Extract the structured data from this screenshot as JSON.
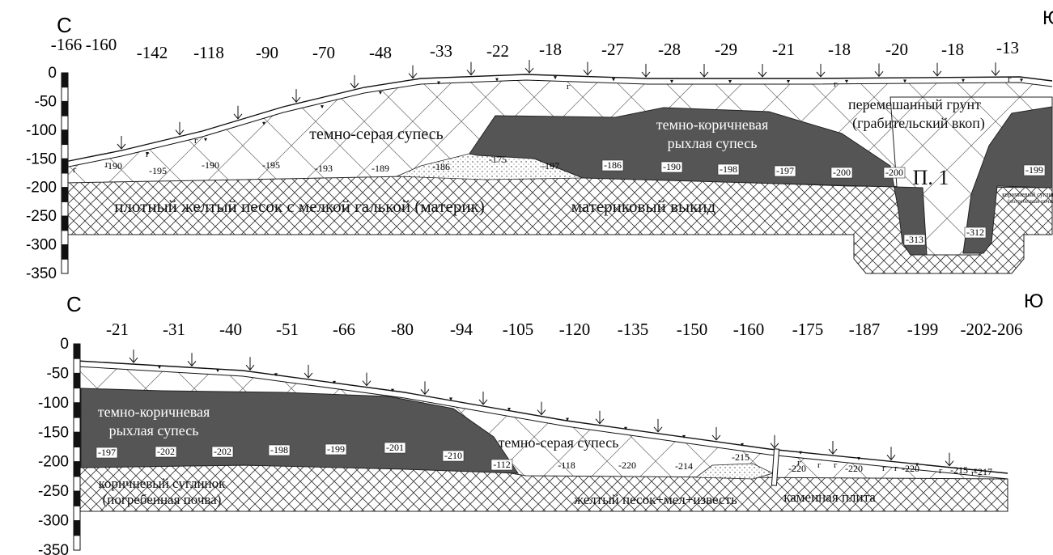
{
  "profiles": [
    {
      "north": "С",
      "south": "Ю",
      "surface_marks": [
        "-166",
        "-160",
        "-142",
        "-118",
        "-90",
        "-70",
        "-48",
        "-33",
        "-22",
        "-18",
        "-27",
        "-28",
        "-29",
        "-21",
        "-18",
        "-20",
        "-18",
        "-13"
      ],
      "scale": [
        "0",
        "-50",
        "-100",
        "-150",
        "-200",
        "-250",
        "-300",
        "-350"
      ],
      "depths": [
        "-190",
        "-195",
        "-190",
        "-195",
        "-193",
        "-189",
        "-186",
        "-175",
        "-197",
        "-186",
        "-190",
        "-198",
        "-197",
        "-200",
        "-200",
        "-199",
        "-313",
        "-312"
      ],
      "soil_mark": "г",
      "layer_labels": [
        "темно-серая супесь",
        "темно-коричневая",
        "рыхлая супесь",
        "перемешанный грунт",
        "(грабительский вкоп)",
        "плотный желтый песок с мелкой галькой (материк)",
        "материковый выкид",
        "П. 1",
        "коричневый суглинок",
        "(погребенная почва)"
      ]
    },
    {
      "north": "С",
      "south": "Ю",
      "surface_marks": [
        "-21",
        "-31",
        "-40",
        "-51",
        "-66",
        "-80",
        "-94",
        "-105",
        "-120",
        "-135",
        "-150",
        "-160",
        "-175",
        "-187",
        "-199",
        "-202-206"
      ],
      "scale": [
        "0",
        "-50",
        "-100",
        "-150",
        "-200",
        "-250",
        "-300",
        "-350"
      ],
      "depths": [
        "-197",
        "-202",
        "-202",
        "-198",
        "-199",
        "-201",
        "-210",
        "-112",
        "-118",
        "-220",
        "-214",
        "-215",
        "-220",
        "-220",
        "-220",
        "-215",
        "-217"
      ],
      "soil_mark": "г",
      "layer_labels": [
        "темно-коричневая",
        "рыхлая супесь",
        "темно-серая супесь",
        "коричневый суглинок",
        "(погребенная почва)",
        "желтый песок+мел+известь",
        "каменная плита"
      ]
    }
  ]
}
